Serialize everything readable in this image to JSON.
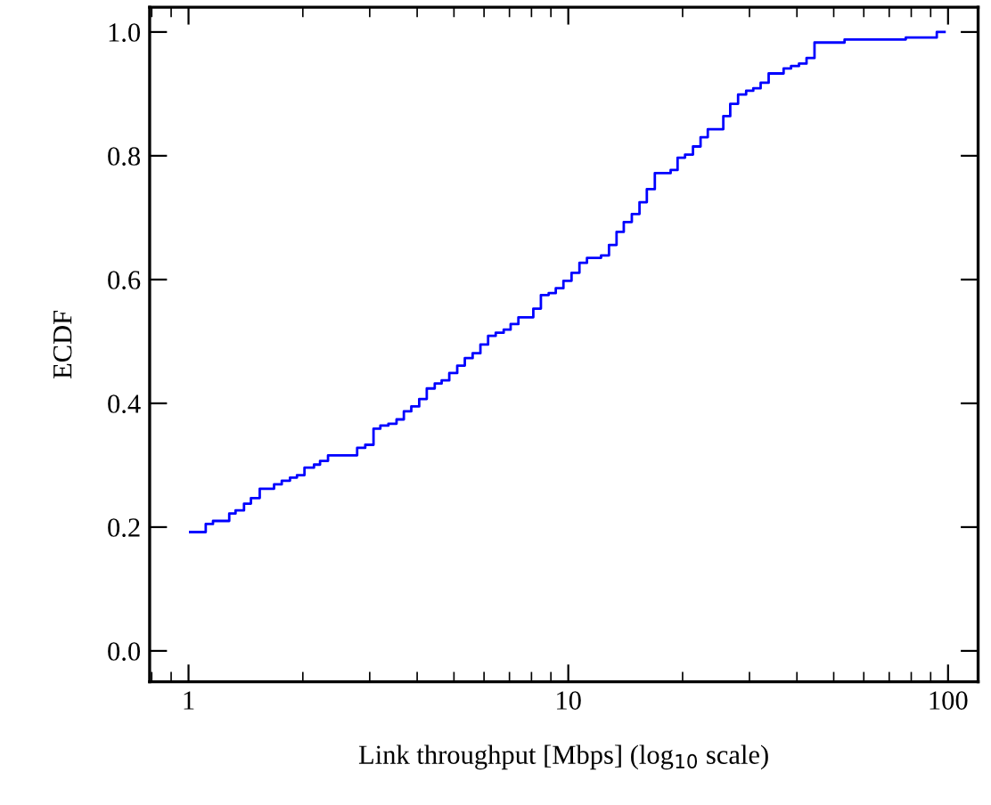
{
  "chart_data": {
    "type": "step",
    "xlabel": "Link throughput [Mbps] (log$_{10}$ scale)",
    "ylabel": "ECDF",
    "log": "x",
    "grid": false,
    "marker": "none",
    "line_style": "solid",
    "xlim": [
      0.79,
      120
    ],
    "ylim": [
      -0.05,
      1.04
    ],
    "xticks": [
      1,
      10,
      100
    ],
    "yticks": [
      {
        "value": 0,
        "label": "0.0"
      },
      {
        "value": 0.2,
        "label": "0.2"
      },
      {
        "value": 0.4,
        "label": "0.4"
      },
      {
        "value": 0.6,
        "label": "0.6"
      },
      {
        "value": 0.8,
        "label": "0.8"
      },
      {
        "value": 1,
        "label": "1.0"
      }
    ],
    "series": [
      {
        "color": "#0000ff",
        "x": [
          1.01,
          1.11,
          1.16,
          1.28,
          1.33,
          1.4,
          1.46,
          1.54,
          1.68,
          1.76,
          1.85,
          1.93,
          2.02,
          2.14,
          2.22,
          2.33,
          2.78,
          2.92,
          3.07,
          3.2,
          3.36,
          3.53,
          3.69,
          3.86,
          4.05,
          4.24,
          4.45,
          4.64,
          4.86,
          5.1,
          5.34,
          5.6,
          5.87,
          6.15,
          6.44,
          6.76,
          7.05,
          7.39,
          8.09,
          8.47,
          8.88,
          9.27,
          9.71,
          10.2,
          10.7,
          11.2,
          12.2,
          12.8,
          13.4,
          14.0,
          14.7,
          15.4,
          16.1,
          16.9,
          18.6,
          19.4,
          20.3,
          21.3,
          22.3,
          23.3,
          25.6,
          26.7,
          28.0,
          29.4,
          30.7,
          32.1,
          33.7,
          36.9,
          38.6,
          40.5,
          42.4,
          44.5,
          53.4,
          77.4,
          93.4,
          97.9
        ],
        "values": [
          0.192,
          0.205,
          0.21,
          0.222,
          0.227,
          0.238,
          0.247,
          0.262,
          0.269,
          0.275,
          0.28,
          0.284,
          0.296,
          0.301,
          0.307,
          0.316,
          0.328,
          0.333,
          0.359,
          0.364,
          0.367,
          0.374,
          0.387,
          0.395,
          0.407,
          0.424,
          0.432,
          0.437,
          0.449,
          0.461,
          0.473,
          0.481,
          0.495,
          0.509,
          0.514,
          0.519,
          0.528,
          0.539,
          0.553,
          0.575,
          0.578,
          0.586,
          0.598,
          0.611,
          0.627,
          0.635,
          0.639,
          0.656,
          0.677,
          0.693,
          0.706,
          0.725,
          0.746,
          0.772,
          0.777,
          0.797,
          0.802,
          0.815,
          0.83,
          0.843,
          0.864,
          0.884,
          0.899,
          0.905,
          0.909,
          0.918,
          0.933,
          0.941,
          0.945,
          0.949,
          0.958,
          0.983,
          0.988,
          0.991,
          1.0,
          1.0
        ]
      }
    ]
  }
}
